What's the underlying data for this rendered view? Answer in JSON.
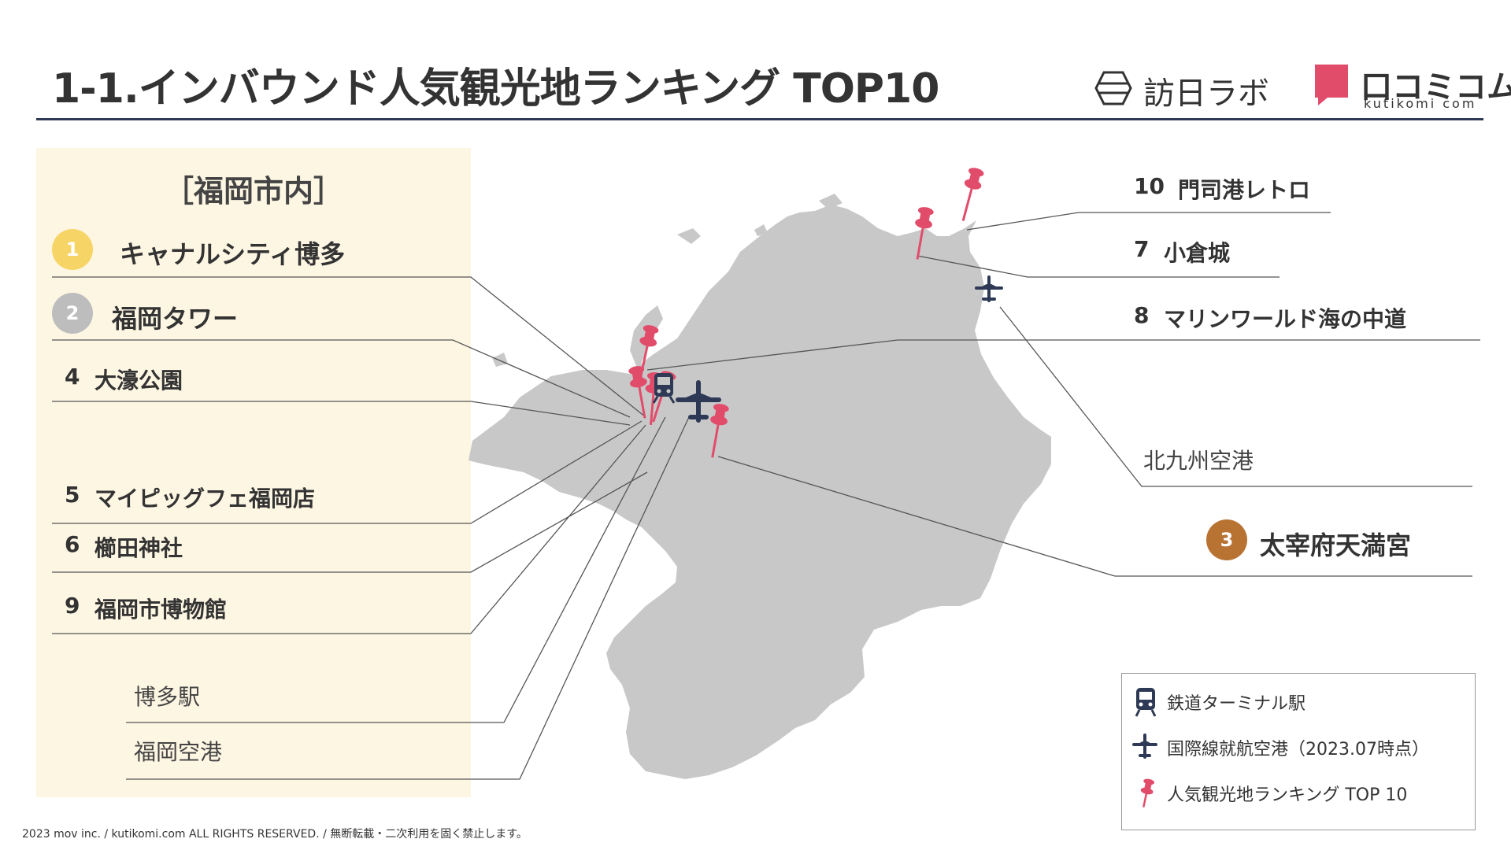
{
  "header": {
    "title": "1-1.インバウンド人気観光地ランキング TOP10",
    "logo_labo": "訪日ラボ",
    "logo_kuchikomi": "口コミコム",
    "logo_kuchikomi_sub": "kutikomi com"
  },
  "panel": {
    "heading": "［福岡市内］",
    "items": [
      {
        "rank": "1",
        "name": "キャナルシティ博多"
      },
      {
        "rank": "2",
        "name": "福岡タワー"
      },
      {
        "rank": "4",
        "name": "大濠公園"
      },
      {
        "rank": "5",
        "name": "マイピッグフェ福岡店"
      },
      {
        "rank": "6",
        "name": "櫛田神社"
      },
      {
        "rank": "9",
        "name": "福岡市博物館"
      }
    ],
    "stations": [
      "博多駅",
      "福岡空港"
    ]
  },
  "right_labels": [
    {
      "rank": "10",
      "name": "門司港レトロ"
    },
    {
      "rank": "7",
      "name": "小倉城"
    },
    {
      "rank": "8",
      "name": "マリンワールド海の中道"
    }
  ],
  "airport_label": "北九州空港",
  "rank3": {
    "rank": "3",
    "name": "太宰府天満宮"
  },
  "legend": [
    {
      "icon": "train-icon",
      "label": "鉄道ターミナル駅"
    },
    {
      "icon": "airplane-icon",
      "label": "国際線就航空港（2023.07時点）"
    },
    {
      "icon": "pushpin-icon",
      "label": "人気観光地ランキング TOP 10"
    }
  ],
  "footer": "2023 mov inc. / kutikomi.com ALL RIGHTS RESERVED. / 無断転載・二次利用を固く禁止します。",
  "colors": {
    "gold": "#f6d566",
    "silver": "#bdbdbd",
    "bronze": "#b87333",
    "pin": "#e24c6b",
    "navy": "#2e3a55",
    "land": "#c8c8c8",
    "panel": "#fdf6e3"
  }
}
